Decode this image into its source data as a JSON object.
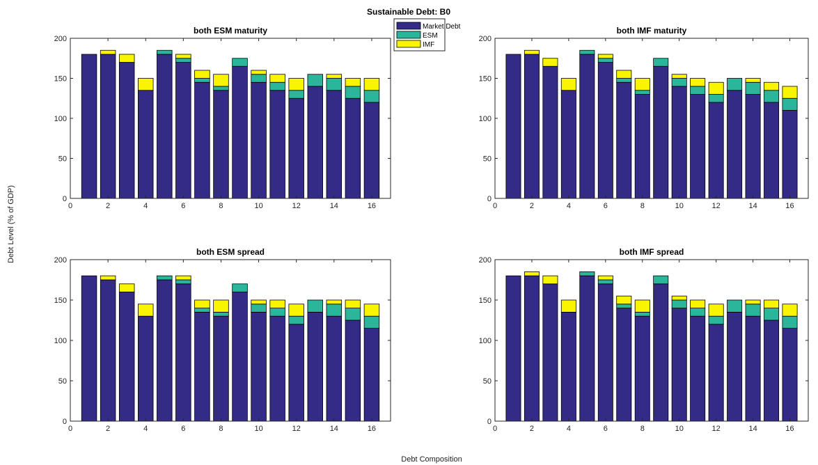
{
  "figure": {
    "suptitle": "Sustainable Debt: B0",
    "xlabel": "Debt Composition",
    "ylabel": "Debt Level (% of GDP)"
  },
  "colors": {
    "market": "#332b85",
    "esm": "#2bb59a",
    "imf": "#f9f400"
  },
  "legend": {
    "placement": "top-center",
    "entries": [
      "Market Debt",
      "ESM",
      "IMF"
    ]
  },
  "chart_data": [
    {
      "type": "bar",
      "stacked": true,
      "title": "both ESM maturity",
      "x": [
        1,
        2,
        3,
        4,
        5,
        6,
        7,
        8,
        9,
        10,
        11,
        12,
        13,
        14,
        15,
        16
      ],
      "xlim": [
        0,
        17
      ],
      "ylim": [
        0,
        200
      ],
      "xticks": [
        0,
        2,
        4,
        6,
        8,
        10,
        12,
        14,
        16
      ],
      "yticks": [
        0,
        50,
        100,
        150,
        200
      ],
      "series": [
        {
          "name": "Market Debt",
          "values": [
            180,
            180,
            170,
            135,
            180,
            170,
            145,
            135,
            165,
            145,
            135,
            125,
            140,
            135,
            125,
            120
          ]
        },
        {
          "name": "ESM",
          "values": [
            0,
            0,
            0,
            0,
            5,
            5,
            5,
            5,
            10,
            10,
            10,
            10,
            15,
            15,
            15,
            15
          ]
        },
        {
          "name": "IMF",
          "values": [
            0,
            5,
            10,
            15,
            0,
            5,
            10,
            15,
            0,
            5,
            10,
            15,
            0,
            5,
            10,
            15
          ]
        }
      ]
    },
    {
      "type": "bar",
      "stacked": true,
      "title": "both IMF maturity",
      "x": [
        1,
        2,
        3,
        4,
        5,
        6,
        7,
        8,
        9,
        10,
        11,
        12,
        13,
        14,
        15,
        16
      ],
      "xlim": [
        0,
        17
      ],
      "ylim": [
        0,
        200
      ],
      "xticks": [
        0,
        2,
        4,
        6,
        8,
        10,
        12,
        14,
        16
      ],
      "yticks": [
        0,
        50,
        100,
        150,
        200
      ],
      "series": [
        {
          "name": "Market Debt",
          "values": [
            180,
            180,
            165,
            135,
            180,
            170,
            145,
            130,
            165,
            140,
            130,
            120,
            135,
            130,
            120,
            110
          ]
        },
        {
          "name": "ESM",
          "values": [
            0,
            0,
            0,
            0,
            5,
            5,
            5,
            5,
            10,
            10,
            10,
            10,
            15,
            15,
            15,
            15
          ]
        },
        {
          "name": "IMF",
          "values": [
            0,
            5,
            10,
            15,
            0,
            5,
            10,
            15,
            0,
            5,
            10,
            15,
            0,
            5,
            10,
            15
          ]
        }
      ]
    },
    {
      "type": "bar",
      "stacked": true,
      "title": "both ESM spread",
      "x": [
        1,
        2,
        3,
        4,
        5,
        6,
        7,
        8,
        9,
        10,
        11,
        12,
        13,
        14,
        15,
        16
      ],
      "xlim": [
        0,
        17
      ],
      "ylim": [
        0,
        200
      ],
      "xticks": [
        0,
        2,
        4,
        6,
        8,
        10,
        12,
        14,
        16
      ],
      "yticks": [
        0,
        50,
        100,
        150,
        200
      ],
      "series": [
        {
          "name": "Market Debt",
          "values": [
            180,
            175,
            160,
            130,
            175,
            170,
            135,
            130,
            160,
            135,
            130,
            120,
            135,
            130,
            125,
            115
          ]
        },
        {
          "name": "ESM",
          "values": [
            0,
            0,
            0,
            0,
            5,
            5,
            5,
            5,
            10,
            10,
            10,
            10,
            15,
            15,
            15,
            15
          ]
        },
        {
          "name": "IMF",
          "values": [
            0,
            5,
            10,
            15,
            0,
            5,
            10,
            15,
            0,
            5,
            10,
            15,
            0,
            5,
            10,
            15
          ]
        }
      ]
    },
    {
      "type": "bar",
      "stacked": true,
      "title": "both IMF spread",
      "x": [
        1,
        2,
        3,
        4,
        5,
        6,
        7,
        8,
        9,
        10,
        11,
        12,
        13,
        14,
        15,
        16
      ],
      "xlim": [
        0,
        17
      ],
      "ylim": [
        0,
        200
      ],
      "xticks": [
        0,
        2,
        4,
        6,
        8,
        10,
        12,
        14,
        16
      ],
      "yticks": [
        0,
        50,
        100,
        150,
        200
      ],
      "series": [
        {
          "name": "Market Debt",
          "values": [
            180,
            180,
            170,
            135,
            180,
            170,
            140,
            130,
            170,
            140,
            130,
            120,
            135,
            130,
            125,
            115
          ]
        },
        {
          "name": "ESM",
          "values": [
            0,
            0,
            0,
            0,
            5,
            5,
            5,
            5,
            10,
            10,
            10,
            10,
            15,
            15,
            15,
            15
          ]
        },
        {
          "name": "IMF",
          "values": [
            0,
            5,
            10,
            15,
            0,
            5,
            10,
            15,
            0,
            5,
            10,
            15,
            0,
            5,
            10,
            15
          ]
        }
      ]
    }
  ]
}
